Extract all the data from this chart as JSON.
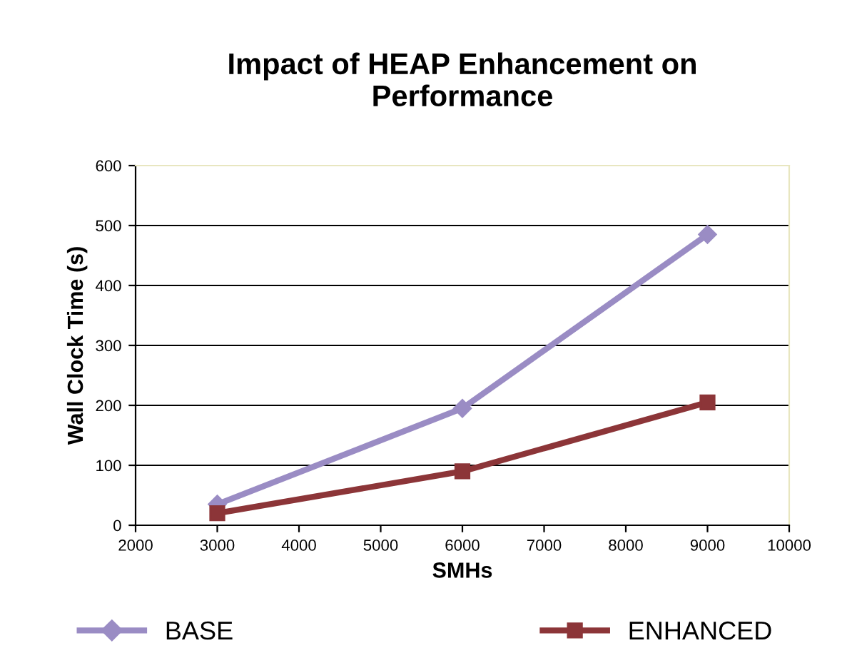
{
  "chart_data": {
    "type": "line",
    "title": "Impact of HEAP Enhancement on\nPerformance",
    "xlabel": "SMHs",
    "ylabel": "Wall Clock Time (s)",
    "x": [
      3000,
      6000,
      9000
    ],
    "series": [
      {
        "name": "BASE",
        "color": "#9a8cc4",
        "marker": "diamond",
        "values": [
          35,
          195,
          485
        ]
      },
      {
        "name": "ENHANCED",
        "color": "#8c3538",
        "marker": "square",
        "values": [
          20,
          90,
          205
        ]
      }
    ],
    "xlim": [
      2000,
      10000
    ],
    "xticks": [
      2000,
      3000,
      4000,
      5000,
      6000,
      7000,
      8000,
      9000,
      10000
    ],
    "ylim": [
      0,
      600
    ],
    "yticks": [
      0,
      100,
      200,
      300,
      400,
      500,
      600
    ],
    "grid": "y",
    "legend": "bottom",
    "line_style": "solid"
  }
}
